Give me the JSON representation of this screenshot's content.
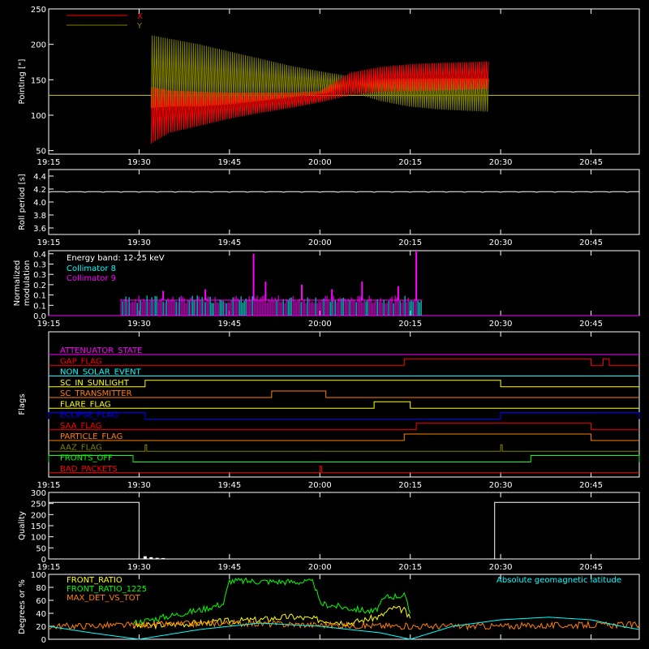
{
  "x_tick_labels": [
    "19:15",
    "19:30",
    "19:45",
    "20:00",
    "20:15",
    "20:30",
    "20:45"
  ],
  "chart_data": [
    {
      "type": "line",
      "ylabel": "Pointing [\"]",
      "yticks": [
        "50",
        "100",
        "150",
        "200",
        "250"
      ],
      "ylim": [
        45,
        250
      ],
      "legend": [
        {
          "name": "X",
          "color": "#ff0000"
        },
        {
          "name": "Y",
          "color": "#808000"
        }
      ],
      "x_range": [
        "19:15",
        "20:53"
      ],
      "series": [
        {
          "name": "X",
          "color": "#ff0000",
          "x": [
            "19:32",
            "19:35",
            "19:40",
            "19:45",
            "19:50",
            "19:55",
            "20:00",
            "20:05",
            "20:10",
            "20:15",
            "20:20",
            "20:25",
            "20:28"
          ],
          "y_max": [
            140,
            135,
            133,
            132,
            132,
            132,
            134,
            160,
            168,
            172,
            174,
            175,
            176
          ],
          "y_min": [
            60,
            75,
            85,
            95,
            103,
            110,
            118,
            128,
            133,
            134,
            135,
            136,
            137
          ]
        },
        {
          "name": "Y",
          "color": "#808000",
          "x": [
            "19:32",
            "19:35",
            "19:40",
            "19:45",
            "19:50",
            "19:55",
            "20:00",
            "20:05",
            "20:10",
            "20:15",
            "20:20",
            "20:25",
            "20:28"
          ],
          "y_max": [
            213,
            208,
            200,
            190,
            180,
            170,
            162,
            155,
            152,
            152,
            152,
            152,
            152
          ],
          "y_min": [
            110,
            112,
            112,
            115,
            120,
            125,
            130,
            133,
            120,
            112,
            108,
            106,
            105
          ]
        },
        {
          "name": "baseline",
          "color": "#c0c000",
          "x": [
            "19:15",
            "20:53"
          ],
          "y": [
            128,
            128
          ]
        }
      ]
    },
    {
      "type": "line",
      "ylabel": "Roll period [s]",
      "yticks": [
        "3.6",
        "3.8",
        "4.0",
        "4.2",
        "4.4"
      ],
      "ylim": [
        3.5,
        4.5
      ],
      "series": [
        {
          "x": [
            "19:15",
            "20:53"
          ],
          "y": [
            4.16,
            4.16
          ],
          "color": "#ffffff"
        }
      ]
    },
    {
      "type": "bar",
      "ylabel": "Normalized modulation",
      "yticks": [
        "0.0",
        "0.1",
        "0.1",
        "0.2",
        "0.3",
        "0.3",
        "0.4"
      ],
      "ylim": [
        0,
        0.42
      ],
      "annotation": "Energy band: 12-25 keV",
      "legend": [
        {
          "name": "Collimator 8",
          "color": "#00ffff"
        },
        {
          "name": "Collimator 9",
          "color": "#ff00ff"
        }
      ],
      "x_range": [
        "19:27",
        "20:17"
      ],
      "baseline": 0.1,
      "spikes": [
        {
          "time": "19:49",
          "value": 0.4
        },
        {
          "time": "19:51",
          "value": 0.22
        },
        {
          "time": "19:57",
          "value": 0.2
        },
        {
          "time": "20:07",
          "value": 0.22
        },
        {
          "time": "20:13",
          "value": 0.19
        },
        {
          "time": "20:16",
          "value": 0.42
        },
        {
          "time": "19:41",
          "value": 0.17
        },
        {
          "time": "19:34",
          "value": 0.16
        },
        {
          "time": "20:02",
          "value": 0.17
        }
      ]
    },
    {
      "type": "line",
      "ylabel": "Flags",
      "flags": [
        {
          "name": "ATTENUATOR_STATE",
          "color": "#ff00ff",
          "on": []
        },
        {
          "name": "GAP_FLAG",
          "color": "#ff0000",
          "on": [
            [
              "20:14",
              "20:45"
            ],
            [
              "20:47",
              "20:48"
            ]
          ]
        },
        {
          "name": "NON_SOLAR_EVENT",
          "color": "#00ffff",
          "on": []
        },
        {
          "name": "SC_IN_SUNLIGHT",
          "color": "#ffff00",
          "on": [
            [
              "19:31",
              "20:30"
            ]
          ]
        },
        {
          "name": "SC_TRANSMITTER",
          "color": "#ff8000",
          "on": [
            [
              "19:52",
              "20:01"
            ]
          ]
        },
        {
          "name": "FLARE_FLAG",
          "color": "#ffff00",
          "on": [
            [
              "20:09",
              "20:15"
            ]
          ]
        },
        {
          "name": "ECLIPSE_FLAG",
          "color": "#0000ff",
          "on": [
            [
              "19:15",
              "19:31"
            ],
            [
              "20:30",
              "20:53"
            ]
          ]
        },
        {
          "name": "SAA_FLAG",
          "color": "#ff0000",
          "on": [
            [
              "20:16",
              "20:45"
            ]
          ]
        },
        {
          "name": "PARTICLE_FLAG",
          "color": "#ff8000",
          "on": [
            [
              "20:14",
              "20:45"
            ]
          ]
        },
        {
          "name": "AAZ_FLAG",
          "color": "#808000",
          "on": [
            [
              "19:31",
              "19:31"
            ],
            [
              "20:30",
              "20:30"
            ]
          ]
        },
        {
          "name": "FRONTS_OFF",
          "color": "#00ff00",
          "on": [
            [
              "19:15",
              "19:29"
            ],
            [
              "20:35",
              "20:53"
            ]
          ]
        },
        {
          "name": "BAD_PACKETS",
          "color": "#ff0000",
          "on": [
            [
              "20:00",
              "20:00"
            ]
          ]
        }
      ]
    },
    {
      "type": "line",
      "ylabel": "Quality",
      "yticks": [
        "0",
        "50",
        "100",
        "150",
        "200",
        "250",
        "300"
      ],
      "ylim": [
        0,
        300
      ],
      "series": [
        {
          "color": "#ffffff",
          "x": [
            "19:15",
            "19:30",
            "19:30",
            "20:29",
            "20:29",
            "20:53"
          ],
          "y": [
            255,
            255,
            0,
            0,
            255,
            255
          ]
        }
      ]
    },
    {
      "type": "line",
      "ylabel": "Degrees or %",
      "yticks": [
        "0",
        "20",
        "40",
        "60",
        "80",
        "100"
      ],
      "ylim": [
        0,
        100
      ],
      "legend": [
        {
          "name": "FRONT_RATIO",
          "color": "#ffff00"
        },
        {
          "name": "FRONT_RATIO_1225",
          "color": "#00ff00"
        },
        {
          "name": "MAX_DET_VS_TOT",
          "color": "#ff8000"
        },
        {
          "name": "Absolute geomagnetic latitude",
          "color": "#00ffff"
        }
      ],
      "series": [
        {
          "name": "FRONT_RATIO",
          "color": "#ffff00",
          "x": [
            "19:29",
            "19:40",
            "19:45",
            "19:50",
            "19:55",
            "20:00",
            "20:05",
            "20:10",
            "20:12",
            "20:14",
            "20:15"
          ],
          "y": [
            20,
            25,
            28,
            30,
            35,
            30,
            25,
            35,
            48,
            45,
            30
          ]
        },
        {
          "name": "FRONT_RATIO_1225",
          "color": "#00ff00",
          "x": [
            "19:29",
            "19:40",
            "19:44",
            "19:45",
            "19:59",
            "20:00",
            "20:09",
            "20:11",
            "20:14",
            "20:15"
          ],
          "y": [
            25,
            45,
            55,
            90,
            88,
            55,
            42,
            65,
            68,
            40
          ]
        },
        {
          "name": "MAX_DET_VS_TOT",
          "color": "#ff8000",
          "x": [
            "19:15",
            "19:30",
            "19:45",
            "20:00",
            "20:15",
            "20:30",
            "20:45",
            "20:53"
          ],
          "y": [
            20,
            22,
            25,
            22,
            20,
            20,
            22,
            22
          ]
        },
        {
          "name": "Absolute geomagnetic latitude",
          "color": "#00ffff",
          "x": [
            "19:15",
            "19:22",
            "19:30",
            "19:40",
            "19:50",
            "20:00",
            "20:10",
            "20:15",
            "20:22",
            "20:30",
            "20:38",
            "20:45",
            "20:50",
            "20:53"
          ],
          "y": [
            20,
            10,
            0,
            15,
            25,
            20,
            10,
            0,
            20,
            30,
            34,
            30,
            20,
            15
          ]
        }
      ]
    }
  ]
}
